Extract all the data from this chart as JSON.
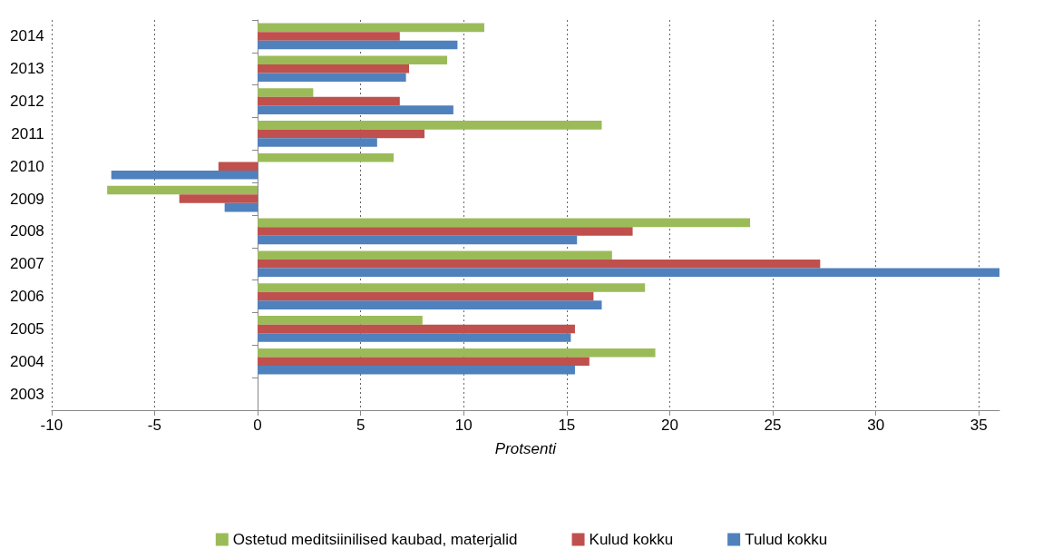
{
  "chart_data": {
    "type": "bar",
    "orientation": "horizontal",
    "xlabel": "Protsenti",
    "categories": [
      "2014",
      "2013",
      "2012",
      "2011",
      "2010",
      "2009",
      "2008",
      "2007",
      "2006",
      "2005",
      "2004",
      "2003"
    ],
    "series": [
      {
        "name": "Ostetud meditsiinilised kaubad, materjalid",
        "color": "#9bbb59",
        "values": [
          11.0,
          9.2,
          2.7,
          16.7,
          6.6,
          -7.3,
          23.9,
          17.2,
          18.8,
          8.0,
          19.3,
          null
        ]
      },
      {
        "name": "Kulud kokku",
        "color": "#c0504d",
        "values": [
          6.9,
          7.35,
          6.9,
          8.1,
          -1.9,
          -3.8,
          18.2,
          27.3,
          16.3,
          15.4,
          16.1,
          null
        ]
      },
      {
        "name": "Tulud kokku",
        "color": "#4f81bd",
        "values": [
          9.7,
          7.2,
          9.5,
          5.8,
          -7.1,
          -1.6,
          15.5,
          36.0,
          16.7,
          15.2,
          15.4,
          null
        ]
      }
    ],
    "xlim": [
      -10,
      36
    ],
    "xticks": [
      -10,
      -5,
      0,
      5,
      10,
      15,
      20,
      25,
      30,
      35
    ],
    "grid": "x",
    "legend": "bottom"
  }
}
